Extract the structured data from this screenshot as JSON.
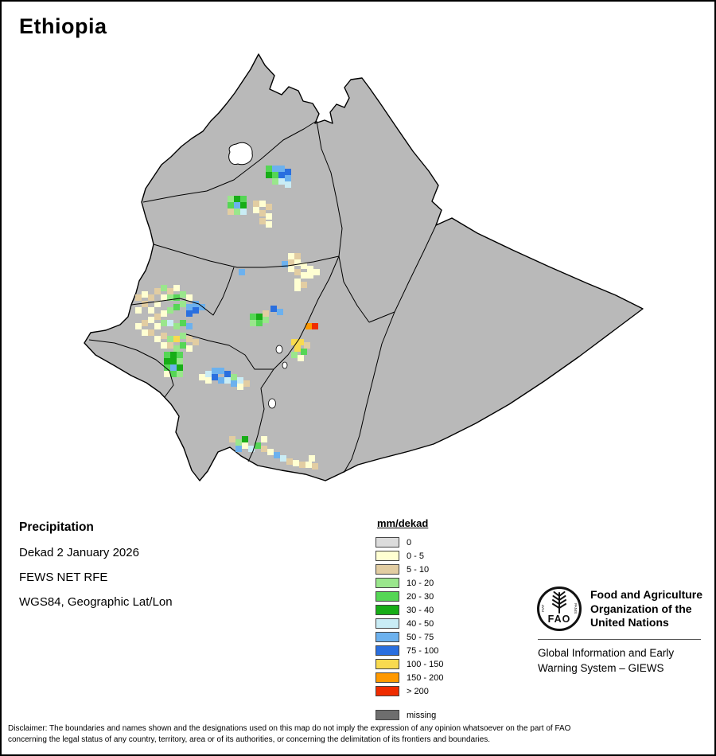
{
  "title": "Ethiopia",
  "info": {
    "heading": "Precipitation",
    "lines": [
      "Dekad 2 January 2026",
      "FEWS NET RFE",
      "WGS84, Geographic Lat/Lon"
    ]
  },
  "legend": {
    "header": "mm/dekad",
    "entries": [
      {
        "key": "c0",
        "label": "0",
        "color": "#dcdcdc"
      },
      {
        "key": "y05",
        "label": "0 - 5",
        "color": "#ffffd2"
      },
      {
        "key": "t510",
        "label": "5 - 10",
        "color": "#e2cda2"
      },
      {
        "key": "g1020",
        "label": "10 - 20",
        "color": "#9ae68c"
      },
      {
        "key": "g2030",
        "label": "20 - 30",
        "color": "#55d655"
      },
      {
        "key": "g3040",
        "label": "30 - 40",
        "color": "#17ad17"
      },
      {
        "key": "c4050",
        "label": "40 - 50",
        "color": "#c9ecf5"
      },
      {
        "key": "b5075",
        "label": "50 - 75",
        "color": "#6cb1ee"
      },
      {
        "key": "b75100",
        "label": "75 - 100",
        "color": "#2a6fdf"
      },
      {
        "key": "y100",
        "label": "100 - 150",
        "color": "#f8da50"
      },
      {
        "key": "o150",
        "label": "150 - 200",
        "color": "#ff9900"
      },
      {
        "key": "r200",
        "label": "> 200",
        "color": "#ef2c00"
      }
    ],
    "missing": {
      "key": "miss",
      "label": "missing",
      "color": "#6e6e6e"
    }
  },
  "map": {
    "country_fill": "#b9b9b9",
    "boundary_color": "#000000",
    "cell_size": 8,
    "cells": [
      [
        332,
        206,
        "g2030"
      ],
      [
        340,
        206,
        "b5075"
      ],
      [
        348,
        206,
        "b5075"
      ],
      [
        356,
        210,
        "b75100"
      ],
      [
        332,
        214,
        "g3040"
      ],
      [
        340,
        214,
        "g2030"
      ],
      [
        348,
        214,
        "b75100"
      ],
      [
        356,
        218,
        "b5075"
      ],
      [
        340,
        222,
        "g1020"
      ],
      [
        348,
        222,
        "c4050"
      ],
      [
        356,
        226,
        "c4050"
      ],
      [
        284,
        244,
        "g1020"
      ],
      [
        292,
        244,
        "g3040"
      ],
      [
        300,
        244,
        "g2030"
      ],
      [
        284,
        252,
        "g2030"
      ],
      [
        292,
        252,
        "b5075"
      ],
      [
        300,
        252,
        "g3040"
      ],
      [
        292,
        260,
        "g1020"
      ],
      [
        300,
        260,
        "c4050"
      ],
      [
        284,
        260,
        "t510"
      ],
      [
        316,
        250,
        "t510"
      ],
      [
        324,
        250,
        "y05"
      ],
      [
        332,
        254,
        "t510"
      ],
      [
        316,
        258,
        "y05"
      ],
      [
        324,
        262,
        "t510"
      ],
      [
        332,
        266,
        "y05"
      ],
      [
        324,
        272,
        "t510"
      ],
      [
        332,
        276,
        "y05"
      ],
      [
        298,
        336,
        "b5075"
      ],
      [
        352,
        326,
        "b5075"
      ],
      [
        360,
        316,
        "y05"
      ],
      [
        368,
        316,
        "t510"
      ],
      [
        360,
        324,
        "t510"
      ],
      [
        368,
        324,
        "y05"
      ],
      [
        376,
        328,
        "y05"
      ],
      [
        360,
        332,
        "y05"
      ],
      [
        368,
        336,
        "t510"
      ],
      [
        376,
        340,
        "y05"
      ],
      [
        368,
        348,
        "y05"
      ],
      [
        376,
        352,
        "t510"
      ],
      [
        368,
        356,
        "y05"
      ],
      [
        384,
        332,
        "y05"
      ],
      [
        384,
        340,
        "y05"
      ],
      [
        392,
        336,
        "y05"
      ],
      [
        168,
        368,
        "t510"
      ],
      [
        176,
        364,
        "y05"
      ],
      [
        184,
        368,
        "t510"
      ],
      [
        176,
        376,
        "t510"
      ],
      [
        168,
        384,
        "y05"
      ],
      [
        184,
        384,
        "y05"
      ],
      [
        192,
        376,
        "y05"
      ],
      [
        200,
        368,
        "y05"
      ],
      [
        192,
        360,
        "t510"
      ],
      [
        200,
        356,
        "g1020"
      ],
      [
        208,
        360,
        "t510"
      ],
      [
        216,
        356,
        "y05"
      ],
      [
        208,
        368,
        "g1020"
      ],
      [
        216,
        368,
        "g2030"
      ],
      [
        224,
        364,
        "g1020"
      ],
      [
        232,
        368,
        "y05"
      ],
      [
        224,
        376,
        "g1020"
      ],
      [
        216,
        380,
        "g2030"
      ],
      [
        208,
        384,
        "g1020"
      ],
      [
        232,
        380,
        "b5075"
      ],
      [
        240,
        376,
        "b5075"
      ],
      [
        240,
        384,
        "b75100"
      ],
      [
        248,
        380,
        "b5075"
      ],
      [
        232,
        388,
        "b75100"
      ],
      [
        200,
        388,
        "y05"
      ],
      [
        192,
        392,
        "t510"
      ],
      [
        184,
        396,
        "y05"
      ],
      [
        176,
        400,
        "t510"
      ],
      [
        168,
        404,
        "y05"
      ],
      [
        176,
        412,
        "y05"
      ],
      [
        184,
        412,
        "t510"
      ],
      [
        192,
        404,
        "y05"
      ],
      [
        200,
        400,
        "g1020"
      ],
      [
        208,
        400,
        "c4050"
      ],
      [
        216,
        404,
        "g1020"
      ],
      [
        224,
        400,
        "g2030"
      ],
      [
        232,
        404,
        "b5075"
      ],
      [
        192,
        420,
        "y05"
      ],
      [
        200,
        416,
        "t510"
      ],
      [
        208,
        420,
        "g1020"
      ],
      [
        216,
        420,
        "y100"
      ],
      [
        224,
        416,
        "g1020"
      ],
      [
        232,
        420,
        "t510"
      ],
      [
        240,
        424,
        "t510"
      ],
      [
        200,
        428,
        "y05"
      ],
      [
        208,
        428,
        "t510"
      ],
      [
        216,
        432,
        "g1020"
      ],
      [
        224,
        428,
        "g2030"
      ],
      [
        232,
        432,
        "y05"
      ],
      [
        204,
        440,
        "g2030"
      ],
      [
        212,
        440,
        "g3040"
      ],
      [
        220,
        440,
        "g2030"
      ],
      [
        204,
        448,
        "g3040"
      ],
      [
        212,
        448,
        "g3040"
      ],
      [
        220,
        448,
        "g1020"
      ],
      [
        204,
        456,
        "g2030"
      ],
      [
        212,
        456,
        "b5075"
      ],
      [
        220,
        456,
        "g3040"
      ],
      [
        204,
        464,
        "y05"
      ],
      [
        212,
        464,
        "g2030"
      ],
      [
        220,
        464,
        "g1020"
      ],
      [
        248,
        468,
        "y05"
      ],
      [
        256,
        464,
        "c4050"
      ],
      [
        264,
        460,
        "b5075"
      ],
      [
        272,
        460,
        "b5075"
      ],
      [
        280,
        464,
        "b75100"
      ],
      [
        264,
        468,
        "b75100"
      ],
      [
        272,
        472,
        "b5075"
      ],
      [
        280,
        472,
        "c4050"
      ],
      [
        288,
        468,
        "g1020"
      ],
      [
        296,
        472,
        "c4050"
      ],
      [
        288,
        476,
        "b5075"
      ],
      [
        296,
        480,
        "y05"
      ],
      [
        304,
        476,
        "t510"
      ],
      [
        256,
        472,
        "y05"
      ],
      [
        312,
        392,
        "g2030"
      ],
      [
        320,
        392,
        "g3040"
      ],
      [
        328,
        396,
        "g1020"
      ],
      [
        312,
        400,
        "g1020"
      ],
      [
        320,
        400,
        "g2030"
      ],
      [
        328,
        388,
        "t510"
      ],
      [
        338,
        382,
        "b75100"
      ],
      [
        346,
        386,
        "b5075"
      ],
      [
        382,
        404,
        "o150"
      ],
      [
        390,
        404,
        "r200"
      ],
      [
        364,
        424,
        "y100"
      ],
      [
        372,
        424,
        "y100"
      ],
      [
        368,
        432,
        "y100"
      ],
      [
        376,
        436,
        "g2030"
      ],
      [
        364,
        440,
        "g1020"
      ],
      [
        372,
        444,
        "y05"
      ],
      [
        380,
        428,
        "t510"
      ],
      [
        286,
        546,
        "t510"
      ],
      [
        294,
        550,
        "g1020"
      ],
      [
        302,
        554,
        "y05"
      ],
      [
        310,
        558,
        "c4050"
      ],
      [
        318,
        554,
        "g2030"
      ],
      [
        326,
        558,
        "t510"
      ],
      [
        334,
        562,
        "y05"
      ],
      [
        342,
        566,
        "b5075"
      ],
      [
        350,
        570,
        "c4050"
      ],
      [
        358,
        574,
        "t510"
      ],
      [
        366,
        576,
        "y05"
      ],
      [
        374,
        578,
        "t510"
      ],
      [
        382,
        578,
        "y05"
      ],
      [
        302,
        546,
        "g3040"
      ],
      [
        326,
        546,
        "y05"
      ],
      [
        294,
        558,
        "b5075"
      ],
      [
        390,
        580,
        "t510"
      ],
      [
        386,
        570,
        "y05"
      ]
    ]
  },
  "fao": {
    "logo_text": "FAO",
    "logo_motto_left": "FIAT",
    "logo_motto_right": "PANIS",
    "org_lines": [
      "Food and Agriculture",
      "Organization of the",
      "United Nations"
    ],
    "giews_lines": [
      "Global Information and Early",
      "Warning System – GIEWS"
    ]
  },
  "disclaimer": {
    "lines": [
      "Disclaimer: The boundaries and names shown and the designations used on this map do not imply the expression of any opinion whatsoever on the part of FAO",
      "concerning the legal status of any country, territory, area or of its authorities, or concerning the delimitation of its frontiers and boundaries."
    ]
  }
}
